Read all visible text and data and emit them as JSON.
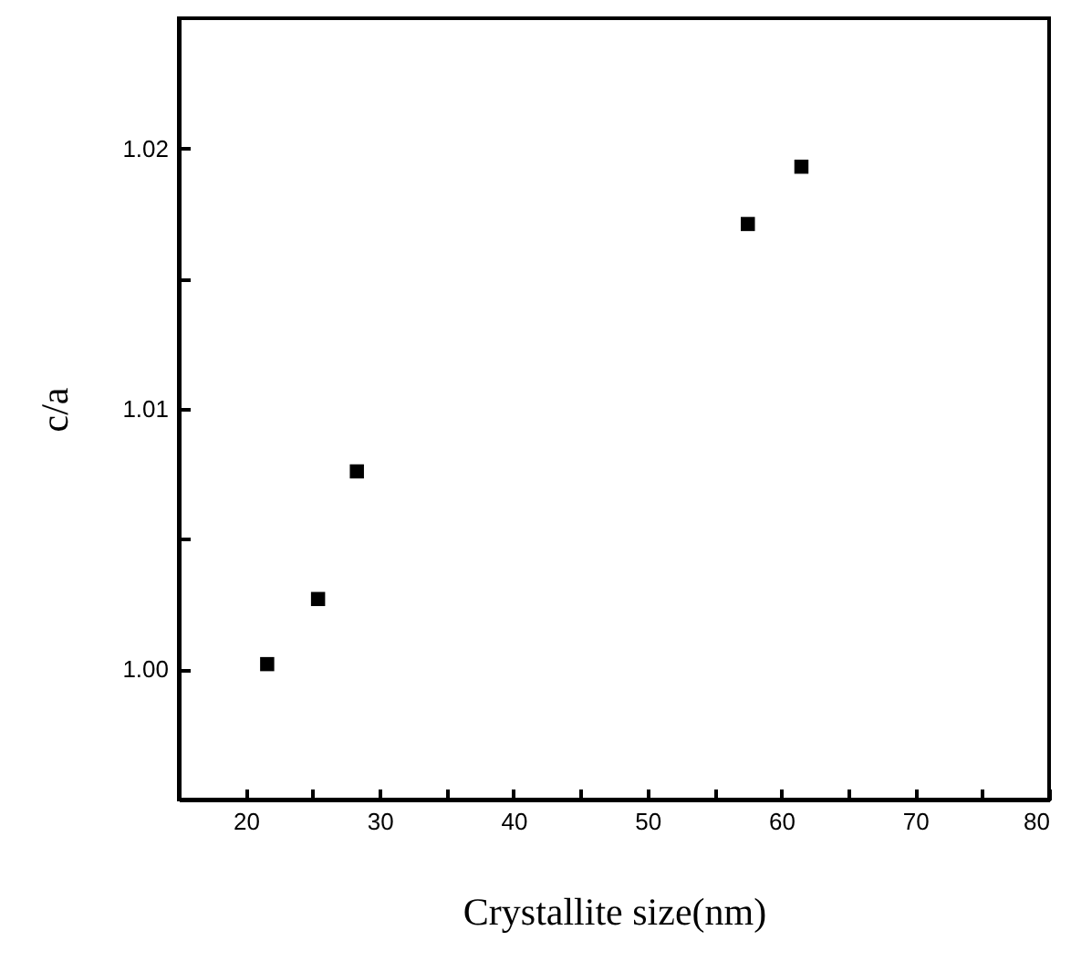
{
  "chart_data": {
    "type": "scatter",
    "xlabel": "Crystallite size(nm)",
    "ylabel": "c/a",
    "x": [
      21.6,
      25.4,
      28.3,
      57.5,
      61.5
    ],
    "series": [
      {
        "color": "#000000",
        "values": [
          1.0002,
          1.0027,
          1.0076,
          1.0171,
          1.0193
        ]
      }
    ],
    "xlim": [
      15,
      80
    ],
    "ylim": [
      0.995,
      1.025
    ],
    "xticks": [
      20,
      {
        "value": 25,
        "label": null
      },
      30,
      {
        "value": 35,
        "label": null
      },
      40,
      {
        "value": 45,
        "label": null
      },
      50,
      {
        "value": 55,
        "label": null
      },
      60,
      {
        "value": 65,
        "label": null
      },
      70,
      {
        "value": 75,
        "label": null
      },
      80
    ],
    "yticks": [
      {
        "value": 0.995,
        "label": null
      },
      {
        "value": 1.0,
        "label": "1.00"
      },
      {
        "value": 1.005,
        "label": null
      },
      1.01,
      {
        "value": 1.015,
        "label": null
      },
      1.02
    ],
    "marker": "square",
    "grid": false
  }
}
